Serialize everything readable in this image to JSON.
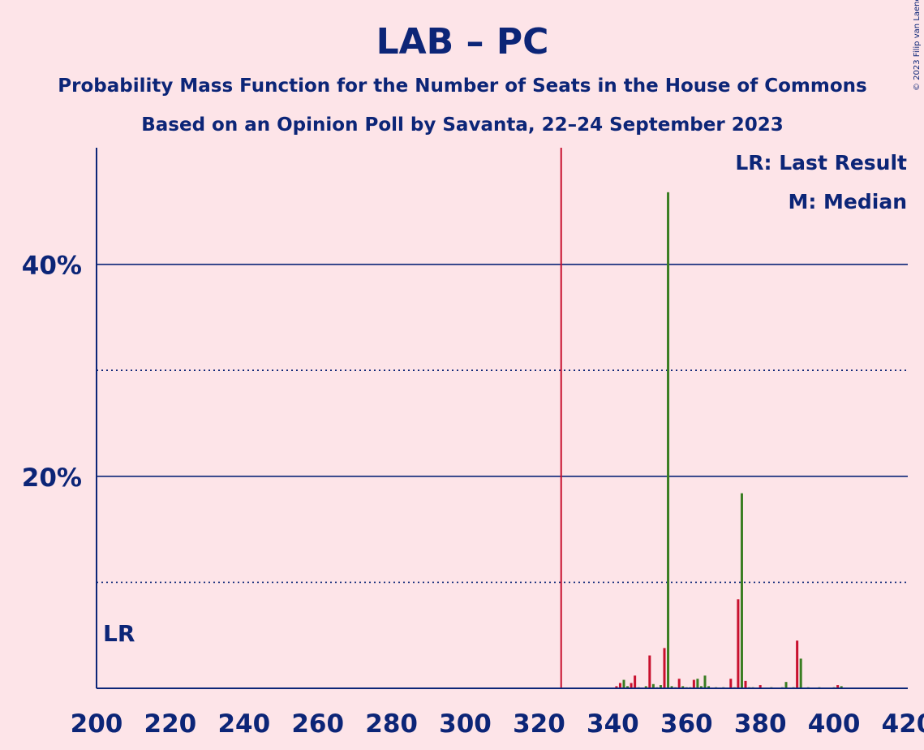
{
  "title": "LAB – PC",
  "subtitle": "Probability Mass Function for the Number of Seats in the House of Commons",
  "subtitle2": "Based on an Opinion Poll by Savanta, 22–24 September 2023",
  "copyright": "© 2023 Filip van Laenen",
  "legend": {
    "last_result": "LR: Last Result",
    "median": "M: Median",
    "lr_marker": "LR"
  },
  "colors": {
    "background": "#fde4e8",
    "text": "#0c2577",
    "bar_red": "#c8102e",
    "bar_green": "#3a7d22",
    "majority_line": "#c8102e",
    "grid": "#0c2577"
  },
  "chart_data": {
    "type": "bar",
    "xlim": [
      200,
      420
    ],
    "ylim": [
      0,
      51
    ],
    "x_ticks": [
      "200",
      "220",
      "240",
      "260",
      "280",
      "300",
      "320",
      "340",
      "360",
      "380",
      "400",
      "420"
    ],
    "y_ticks_labeled": [
      {
        "value": 20,
        "label": "20%"
      },
      {
        "value": 40,
        "label": "40%"
      }
    ],
    "y_grid_solid": [
      20,
      40
    ],
    "y_grid_dotted": [
      10,
      30
    ],
    "majority_line_x": 326,
    "last_result_x": 205,
    "median_x": 355,
    "x": [
      341,
      342,
      343,
      344,
      345,
      346,
      347,
      349,
      350,
      351,
      352,
      353,
      354,
      355,
      356,
      357,
      358,
      359,
      360,
      361,
      362,
      363,
      364,
      365,
      366,
      368,
      370,
      372,
      373,
      374,
      375,
      376,
      377,
      378,
      380,
      383,
      386,
      387,
      389,
      390,
      391,
      393,
      396,
      400,
      401,
      402
    ],
    "values": [
      0.2,
      0.5,
      0.8,
      0.2,
      0.5,
      1.2,
      0.1,
      0.2,
      3.1,
      0.4,
      0.1,
      0.3,
      3.8,
      46.8,
      0.2,
      0.1,
      0.9,
      0.2,
      0.1,
      0.1,
      0.8,
      0.9,
      0.2,
      1.2,
      0.2,
      0.1,
      0.1,
      0.9,
      0.1,
      8.4,
      18.4,
      0.7,
      0.1,
      0.1,
      0.3,
      0.1,
      0.1,
      0.6,
      0.1,
      4.5,
      2.8,
      0.1,
      0.1,
      0.1,
      0.3,
      0.2
    ],
    "colors": [
      "red",
      "red",
      "green",
      "green",
      "red",
      "red",
      "green",
      "green",
      "red",
      "green",
      "green",
      "green",
      "red",
      "green",
      "green",
      "green",
      "red",
      "green",
      "green",
      "green",
      "red",
      "green",
      "green",
      "green",
      "green",
      "green",
      "green",
      "red",
      "green",
      "red",
      "green",
      "red",
      "green",
      "green",
      "red",
      "green",
      "green",
      "green",
      "green",
      "red",
      "green",
      "green",
      "green",
      "green",
      "red",
      "green"
    ]
  }
}
